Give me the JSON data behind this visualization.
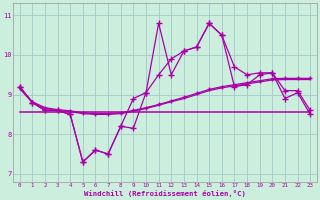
{
  "xlabel": "Windchill (Refroidissement éolien,°C)",
  "bg_color": "#cceedd",
  "grid_color": "#aacccc",
  "line_color": "#aa00aa",
  "x": [
    0,
    1,
    2,
    3,
    4,
    5,
    6,
    7,
    8,
    9,
    10,
    11,
    12,
    13,
    14,
    15,
    16,
    17,
    18,
    19,
    20,
    21,
    22,
    23
  ],
  "y_jagged": [
    9.2,
    8.8,
    8.6,
    8.6,
    8.5,
    7.3,
    7.6,
    7.5,
    8.2,
    8.15,
    9.05,
    10.8,
    9.5,
    10.1,
    10.2,
    10.8,
    10.5,
    9.2,
    9.25,
    9.5,
    9.55,
    8.9,
    9.05,
    8.5
  ],
  "y_upper": [
    9.2,
    8.8,
    8.6,
    8.6,
    8.5,
    7.3,
    7.6,
    7.5,
    8.2,
    8.9,
    9.05,
    9.5,
    9.9,
    10.1,
    10.2,
    10.8,
    10.5,
    9.7,
    9.5,
    9.55,
    9.55,
    9.1,
    9.1,
    8.6
  ],
  "y_trend1": [
    9.15,
    8.8,
    8.65,
    8.6,
    8.57,
    8.52,
    8.5,
    8.5,
    8.52,
    8.58,
    8.65,
    8.73,
    8.82,
    8.9,
    9.0,
    9.1,
    9.17,
    9.22,
    9.27,
    9.32,
    9.37,
    9.38,
    9.38,
    9.38
  ],
  "y_trend2": [
    9.18,
    8.82,
    8.67,
    8.62,
    8.59,
    8.54,
    8.52,
    8.52,
    8.54,
    8.6,
    8.67,
    8.75,
    8.84,
    8.93,
    9.03,
    9.13,
    9.2,
    9.25,
    9.3,
    9.35,
    9.4,
    9.41,
    9.41,
    9.41
  ],
  "y_flat": [
    8.55,
    8.55,
    8.55,
    8.55,
    8.55,
    8.55,
    8.55,
    8.55,
    8.55,
    8.55,
    8.55,
    8.55,
    8.55,
    8.55,
    8.55,
    8.55,
    8.55,
    8.55,
    8.55,
    8.55,
    8.55,
    8.55,
    8.55,
    8.55
  ],
  "ylim": [
    6.8,
    11.3
  ],
  "xlim": [
    -0.5,
    23.5
  ],
  "yticks": [
    7,
    8,
    9,
    10,
    11
  ],
  "xticks": [
    0,
    1,
    2,
    3,
    4,
    5,
    6,
    7,
    8,
    9,
    10,
    11,
    12,
    13,
    14,
    15,
    16,
    17,
    18,
    19,
    20,
    21,
    22,
    23
  ],
  "linewidth": 0.9
}
